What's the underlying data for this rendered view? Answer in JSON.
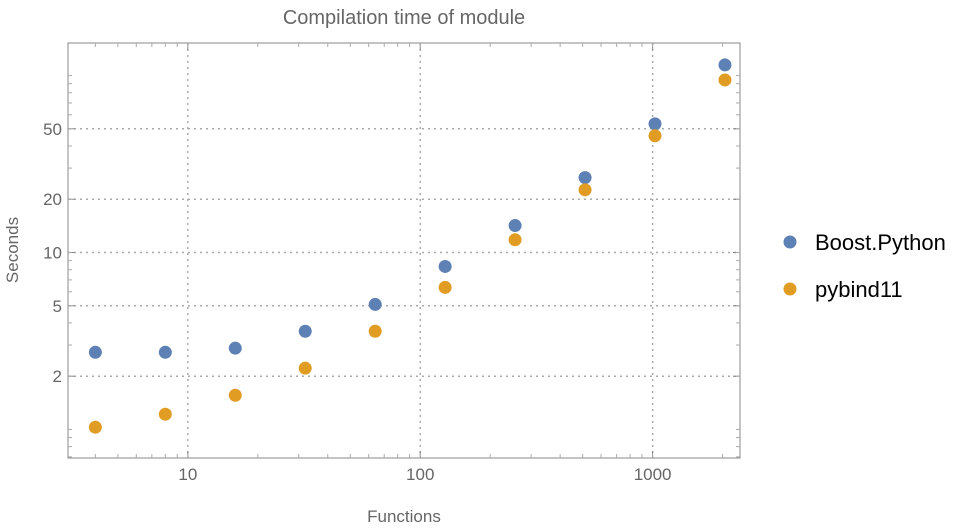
{
  "chart_data": {
    "type": "scatter",
    "title": "Compilation time of module",
    "xlabel": "Functions",
    "ylabel": "Seconds",
    "xscale": "log",
    "yscale": "log",
    "xlim": [
      3.05,
      2377
    ],
    "ylim": [
      0.69,
      152.7
    ],
    "grid": true,
    "legend_position": "right",
    "x_ticks": [
      10,
      100,
      1000
    ],
    "x_tick_labels": [
      "10",
      "100",
      "1000"
    ],
    "y_ticks": [
      2,
      5,
      10,
      20,
      50
    ],
    "y_tick_labels": [
      "2",
      "5",
      "10",
      "20",
      "50"
    ],
    "x": [
      4,
      8,
      16,
      32,
      64,
      128,
      256,
      512,
      1024,
      2048
    ],
    "series": [
      {
        "name": "Boost.Python",
        "color": "#5e81b5",
        "values": [
          2.73,
          2.73,
          2.88,
          3.59,
          5.09,
          8.34,
          14.2,
          26.5,
          53.3,
          114.8
        ]
      },
      {
        "name": "pybind11",
        "color": "#e19c24",
        "values": [
          1.03,
          1.22,
          1.56,
          2.22,
          3.59,
          6.35,
          11.8,
          22.6,
          45.7,
          94.4
        ]
      }
    ]
  }
}
